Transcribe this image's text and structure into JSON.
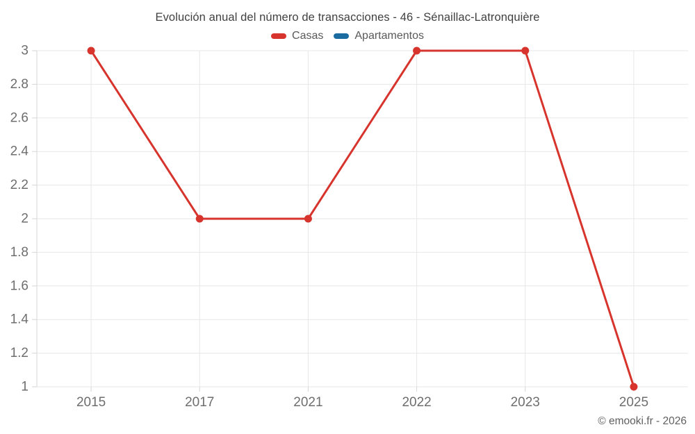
{
  "header": {
    "title": "Evolución anual del número de transacciones - 46 - Sénaillac-Latronquière"
  },
  "footer": {
    "credit": "© emooki.fr - 2026"
  },
  "style": {
    "grid_color": "#e7e7e7",
    "axis_color": "#d6d6d6",
    "tick_label_color": "#6e6e6e",
    "title_color": "#404040",
    "legend_label_color": "#595959",
    "footer_color": "#606060",
    "background": "#ffffff"
  },
  "chart_data": {
    "type": "line",
    "title": "Evolución anual del número de transacciones - 46 - Sénaillac-Latronquière",
    "categories": [
      "2015",
      "2017",
      "2021",
      "2022",
      "2023",
      "2025"
    ],
    "series": [
      {
        "name": "Casas",
        "color": "#d6342c",
        "values": [
          3,
          2,
          2,
          3,
          3,
          1
        ]
      },
      {
        "name": "Apartamentos",
        "color": "#1b6ca0",
        "values": []
      }
    ],
    "xlabel": "",
    "ylabel": "",
    "ylim": [
      1,
      3
    ],
    "ytick_step": 0.2,
    "ytick_labels": [
      "1",
      "1.2",
      "1.4",
      "1.6",
      "1.8",
      "2",
      "2.2",
      "2.4",
      "2.6",
      "2.8",
      "3"
    ],
    "grid": true,
    "legend_position": "top",
    "marker": "circle"
  }
}
